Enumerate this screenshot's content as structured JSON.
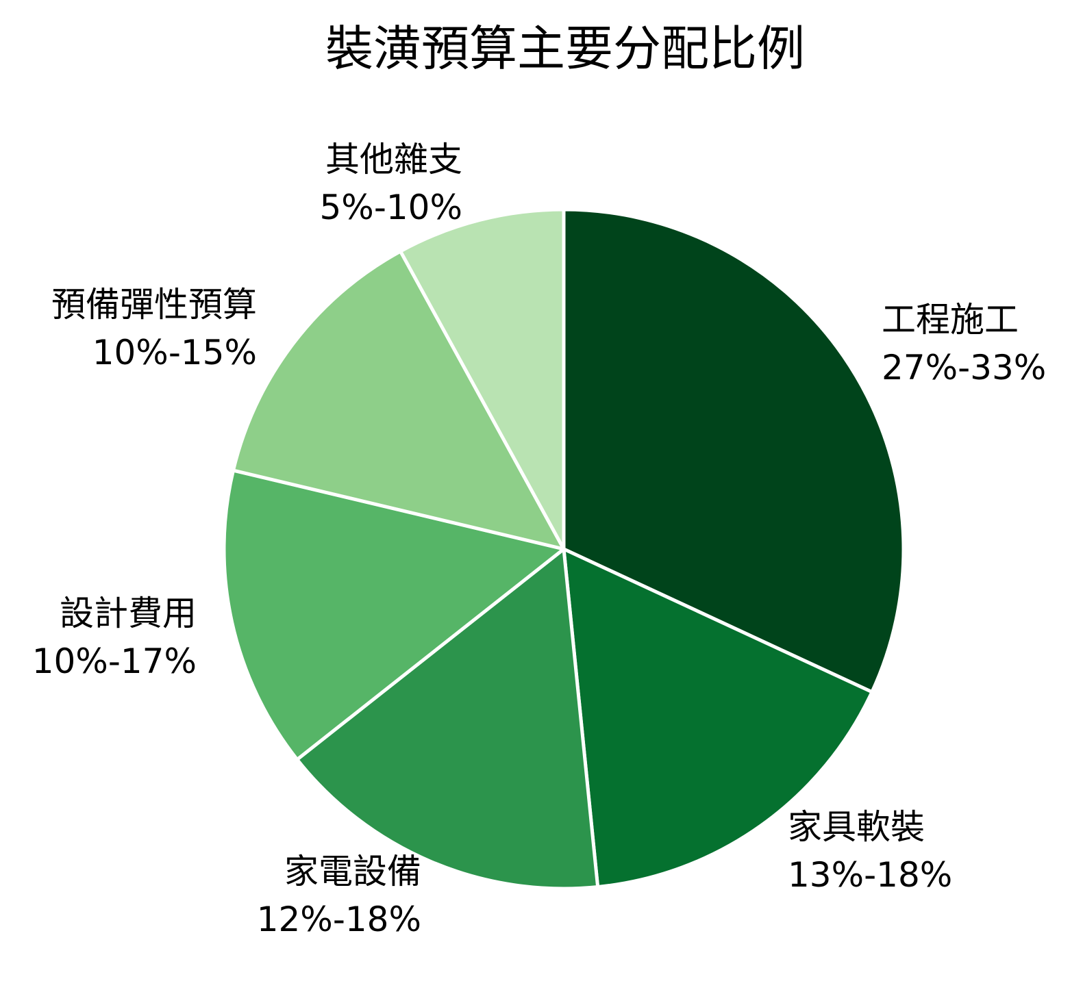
{
  "chart_data": {
    "type": "pie",
    "title": "裝潢預算主要分配比例",
    "start_angle": "12 o'clock, clockwise",
    "slices": [
      {
        "name": "工程施工",
        "range": "27%-33%",
        "value": 30,
        "color": "#00441b"
      },
      {
        "name": "家具軟裝",
        "range": "13%-18%",
        "value": 15.5,
        "color": "#05712f"
      },
      {
        "name": "家電設備",
        "range": "12%-18%",
        "value": 15,
        "color": "#2c944c"
      },
      {
        "name": "設計費用",
        "range": "10%-17%",
        "value": 13.5,
        "color": "#56b567"
      },
      {
        "name": "預備彈性預算",
        "range": "10%-15%",
        "value": 12.5,
        "color": "#8ecf89"
      },
      {
        "name": "其他雜支",
        "range": "5%-10%",
        "value": 7.5,
        "color": "#b9e3b2"
      }
    ],
    "slice_border_color": "#ffffff"
  }
}
